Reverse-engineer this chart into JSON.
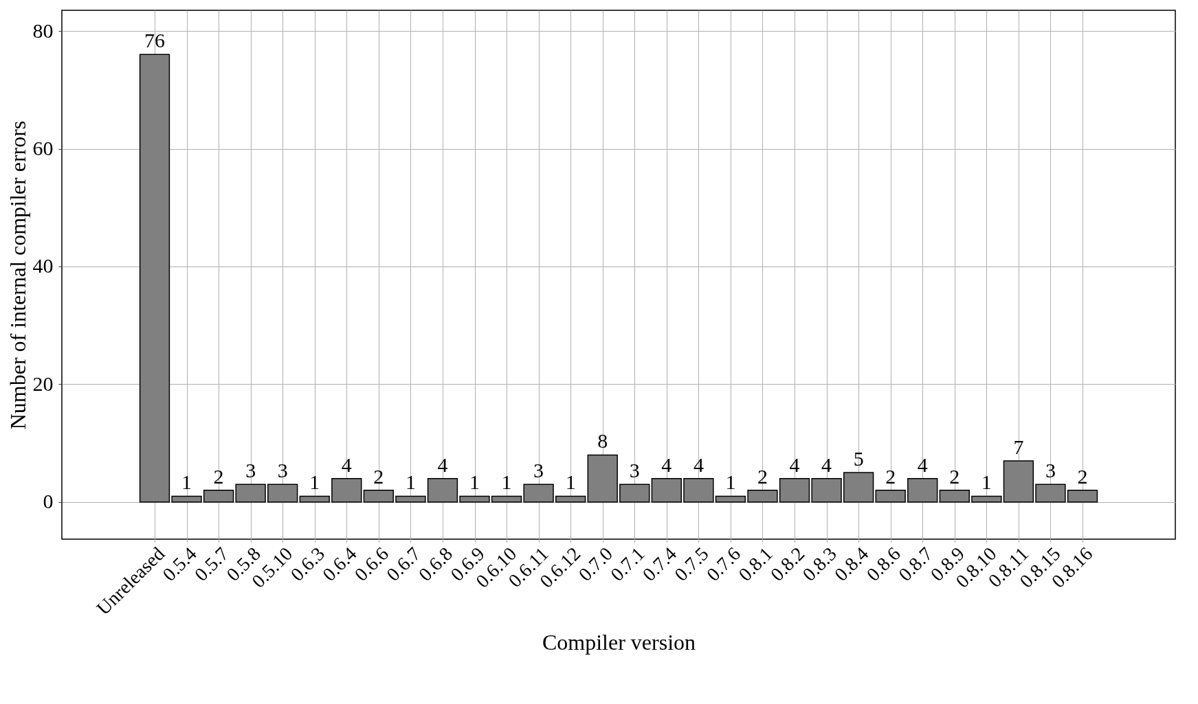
{
  "chart_data": {
    "type": "bar",
    "xlabel": "Compiler version",
    "ylabel": "Number of internal compiler errors",
    "categories": [
      "Unreleased",
      "0.5.4",
      "0.5.7",
      "0.5.8",
      "0.5.10",
      "0.6.3",
      "0.6.4",
      "0.6.6",
      "0.6.7",
      "0.6.8",
      "0.6.9",
      "0.6.10",
      "0.6.11",
      "0.6.12",
      "0.7.0",
      "0.7.1",
      "0.7.4",
      "0.7.5",
      "0.7.6",
      "0.8.1",
      "0.8.2",
      "0.8.3",
      "0.8.4",
      "0.8.6",
      "0.8.7",
      "0.8.9",
      "0.8.10",
      "0.8.11",
      "0.8.15",
      "0.8.16"
    ],
    "values": [
      76,
      1,
      2,
      3,
      3,
      1,
      4,
      2,
      1,
      4,
      1,
      1,
      3,
      1,
      8,
      3,
      4,
      4,
      1,
      2,
      4,
      4,
      5,
      2,
      4,
      2,
      1,
      7,
      3,
      2
    ],
    "color": "#808080",
    "ylim": [
      -6.3,
      83.5
    ],
    "yticks": [
      0,
      20,
      40,
      60,
      80
    ],
    "grid": true,
    "data_labels": true
  }
}
